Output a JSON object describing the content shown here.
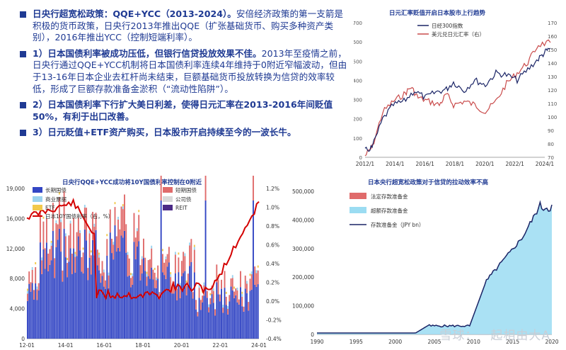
{
  "bullets": [
    {
      "bold": "日央行超宽松政策：QQE+YCC（2013-2024）。",
      "text": "安倍经济政策的第一支箭是积极的货币政策，日央行2013年推出QQE（扩张基础货币、购买多种资产类别），2016年推出YCC（控制短端利率）。"
    },
    {
      "bold": "1）日本国债利率被成功压低，但银行信贷投放效果不佳。",
      "text": "2013年至疫情之前，日央行通过QQE+YCC机制将日本国债利率连续4年维持于0附近窄幅波动，但由于13-16年日本企业去杠杆尚未结束，巨额基础货币投放转换为信贷的效率较低，形成了巨额存款准备金淤积（“流动性陷阱”）。"
    },
    {
      "bold": "2）日本国债利率下行扩大美日利差，使得日元汇率在2013-2016年间贬值50%，有利于出口改善。",
      "text": ""
    },
    {
      "bold": "3）日元贬值+ETF资产购买，日本股市开启持续至今的一波长牛。",
      "text": ""
    }
  ],
  "chart1": {
    "title": "日元汇率贬值开启日本股市上行趋势",
    "legend": [
      "日经300指数",
      "美元兑日元汇率（右）"
    ],
    "colors": {
      "nikkei": "#1a2466",
      "usdjpy": "#c94b4b"
    },
    "x_ticks": [
      "2012/1",
      "2014/1",
      "2016/1",
      "2018/1",
      "2020/1",
      "2022/1",
      "2024/1"
    ],
    "y_left_ticks": [
      "0",
      "100",
      "200",
      "300",
      "400",
      "500",
      "600",
      "700"
    ],
    "y_right_ticks": [
      "70",
      "80",
      "90",
      "100",
      "110",
      "120",
      "130",
      "140",
      "150",
      "160",
      "170"
    ]
  },
  "chart2": {
    "title": "日央行QQE+YCC成功将10Y国债利率控制在0附近",
    "legend": [
      "长期国债",
      "短期国债",
      "商业票据",
      "公司债",
      "ETF",
      "REIT",
      "日本10Y国债利率（右，%）"
    ],
    "colors": {
      "long": "#3346c4",
      "short": "#e06b6b",
      "cp": "#9bd3ef",
      "corp": "#d9d9d9",
      "etf": "#f2c94c",
      "reit": "#4b2a86",
      "rate": "#d40000"
    },
    "x_ticks": [
      "12-01",
      "14-01",
      "16-01",
      "18-01",
      "20-01",
      "22-01",
      "24-01"
    ],
    "y_left_ticks": [
      "0",
      "4,000",
      "8,000",
      "12,000",
      "16,000",
      "19,000"
    ],
    "y_right_ticks": [
      "-0.4%",
      "-0.2%",
      "0.0%",
      "0.2%",
      "0.4%",
      "0.6%",
      "0.8%",
      "1.0%",
      "1.2%"
    ]
  },
  "chart3": {
    "title": "日本央行超宽松政策对于信贷的拉动效率不高",
    "legend": [
      "法定存款准备金",
      "超额存款准备金",
      "存款准备金（JPY bn）"
    ],
    "colors": {
      "legal": "#e06b6b",
      "excess": "#9bdcf2",
      "total": "#1a2466"
    },
    "x_ticks": [
      "1990",
      "1995",
      "2000",
      "2005",
      "2010",
      "2015",
      "2020"
    ],
    "y_ticks": [
      "0",
      "100,000",
      "200,000",
      "300,000",
      "400,000",
      "500,000"
    ]
  },
  "watermark": "雪球：一起相由大A"
}
